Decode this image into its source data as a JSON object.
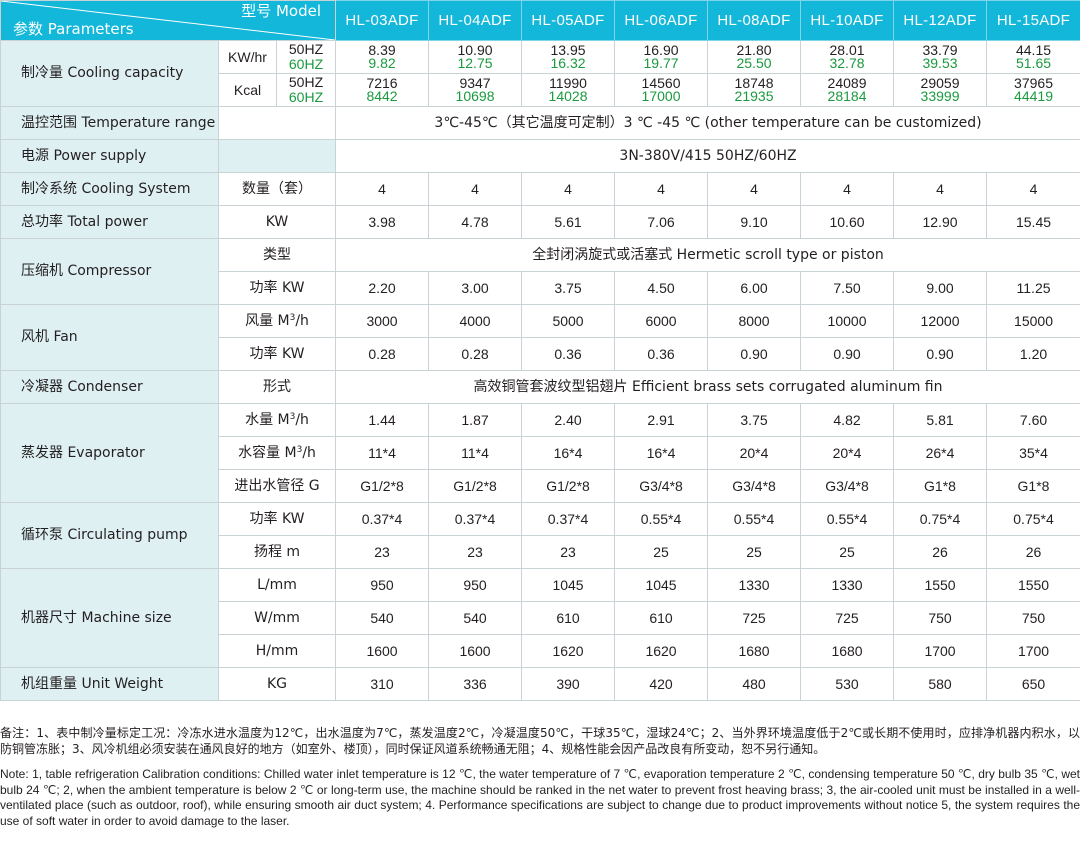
{
  "header": {
    "model_label": "型号 Model",
    "param_label": "参数 Parameters",
    "models": [
      "HL-03ADF",
      "HL-04ADF",
      "HL-05ADF",
      "HL-06ADF",
      "HL-08ADF",
      "HL-10ADF",
      "HL-12ADF",
      "HL-15ADF"
    ]
  },
  "colors": {
    "header_bg": "#12b7d9",
    "label_bg": "#dff0f3",
    "hz60_text": "#1a9a3f",
    "border": "#c9d3d6"
  },
  "rows": {
    "cooling": {
      "label": "制冷量 Cooling capacity",
      "kw_unit": "KW/hr",
      "kcal_unit": "Kcal",
      "hz50": "50HZ",
      "hz60": "60HZ",
      "kw_50": [
        "8.39",
        "10.90",
        "13.95",
        "16.90",
        "21.80",
        "28.01",
        "33.79",
        "44.15"
      ],
      "kw_60": [
        "9.82",
        "12.75",
        "16.32",
        "19.77",
        "25.50",
        "32.78",
        "39.53",
        "51.65"
      ],
      "kcal_50": [
        "7216",
        "9347",
        "11990",
        "14560",
        "18748",
        "24089",
        "29059",
        "37965"
      ],
      "kcal_60": [
        "8442",
        "10698",
        "14028",
        "17000",
        "21935",
        "28184",
        "33999",
        "44419"
      ]
    },
    "temp_range": {
      "label": "温控范围 Temperature range",
      "value": "3℃-45℃（其它温度可定制）3 ℃ -45 ℃ (other temperature can be customized)"
    },
    "power_supply": {
      "label": "电源 Power supply",
      "value": "3N-380V/415  50HZ/60HZ"
    },
    "cooling_system": {
      "label": "制冷系统 Cooling System",
      "sub": "数量（套）",
      "values": [
        "4",
        "4",
        "4",
        "4",
        "4",
        "4",
        "4",
        "4"
      ]
    },
    "total_power": {
      "label": "总功率 Total power",
      "sub": "KW",
      "values": [
        "3.98",
        "4.78",
        "5.61",
        "7.06",
        "9.10",
        "10.60",
        "12.90",
        "15.45"
      ]
    },
    "compressor": {
      "label": "压缩机 Compressor",
      "type_sub": "类型",
      "type_value": "全封闭涡旋式或活塞式 Hermetic scroll type or piston",
      "power_sub": "功率 KW",
      "power_values": [
        "2.20",
        "3.00",
        "3.75",
        "4.50",
        "6.00",
        "7.50",
        "9.00",
        "11.25"
      ]
    },
    "fan": {
      "label": "风机 Fan",
      "air_sub": "风量 M",
      "air_sup": "3",
      "air_tail": "/h",
      "air_values": [
        "3000",
        "4000",
        "5000",
        "6000",
        "8000",
        "10000",
        "12000",
        "15000"
      ],
      "power_sub": "功率 KW",
      "power_values": [
        "0.28",
        "0.28",
        "0.36",
        "0.36",
        "0.90",
        "0.90",
        "0.90",
        "1.20"
      ]
    },
    "condenser": {
      "label": "冷凝器 Condenser",
      "sub": "形式",
      "value": "高效铜管套波纹型铝翅片 Efficient brass sets corrugated aluminum fin"
    },
    "evaporator": {
      "label": "蒸发器 Evaporator",
      "water_sub": "水量 M",
      "water_sup": "3",
      "water_tail": "/h",
      "water_values": [
        "1.44",
        "1.87",
        "2.40",
        "2.91",
        "3.75",
        "4.82",
        "5.81",
        "7.60"
      ],
      "cap_sub": "水容量 M",
      "cap_sup": "3",
      "cap_tail": "/h",
      "cap_values": [
        "11*4",
        "11*4",
        "16*4",
        "16*4",
        "20*4",
        "20*4",
        "26*4",
        "35*4"
      ],
      "pipe_sub": "进出水管径 G",
      "pipe_values": [
        "G1/2*8",
        "G1/2*8",
        "G1/2*8",
        "G3/4*8",
        "G3/4*8",
        "G3/4*8",
        "G1*8",
        "G1*8"
      ]
    },
    "pump": {
      "label": "循环泵 Circulating pump",
      "power_sub": "功率 KW",
      "power_values": [
        "0.37*4",
        "0.37*4",
        "0.37*4",
        "0.55*4",
        "0.55*4",
        "0.55*4",
        "0.75*4",
        "0.75*4"
      ],
      "head_sub": "扬程 m",
      "head_values": [
        "23",
        "23",
        "23",
        "25",
        "25",
        "25",
        "26",
        "26"
      ]
    },
    "size": {
      "label": "机器尺寸 Machine size",
      "l_sub": "L/mm",
      "l_values": [
        "950",
        "950",
        "1045",
        "1045",
        "1330",
        "1330",
        "1550",
        "1550"
      ],
      "w_sub": "W/mm",
      "w_values": [
        "540",
        "540",
        "610",
        "610",
        "725",
        "725",
        "750",
        "750"
      ],
      "h_sub": "H/mm",
      "h_values": [
        "1600",
        "1600",
        "1620",
        "1620",
        "1680",
        "1680",
        "1700",
        "1700"
      ]
    },
    "weight": {
      "label": "机组重量 Unit Weight",
      "sub": "KG",
      "values": [
        "310",
        "336",
        "390",
        "420",
        "480",
        "530",
        "580",
        "650"
      ]
    }
  },
  "notes": {
    "cn": "备注：1、表中制冷量标定工况：冷冻水进水温度为12℃，出水温度为7℃，蒸发温度2℃，冷凝温度50℃，干球35℃，湿球24℃；2、当外界环境温度低于2℃或长期不使用时，应排净机器内积水，以防铜管冻胀；3、风冷机组必须安装在通风良好的地方（如室外、楼顶），同时保证风道系统畅通无阻；4、规格性能会因产品改良有所变动，恕不另行通知。",
    "en": "Note: 1, table refrigeration Calibration conditions: Chilled water inlet temperature is 12 ℃, the water temperature of 7 ℃, evaporation temperature 2 ℃, condensing temperature 50 ℃, dry bulb 35 ℃, wet bulb 24 ℃; 2, when the ambient temperature is below 2 ℃ or long-term use, the machine should be ranked in the net water to prevent frost heaving brass; 3, the air-cooled unit must be installed in a well-ventilated place (such as outdoor, roof), while ensuring smooth air duct system; 4. Performance specifications are subject to change due to product improvements without notice 5, the system requires the use of soft water in order to avoid damage to the laser."
  }
}
